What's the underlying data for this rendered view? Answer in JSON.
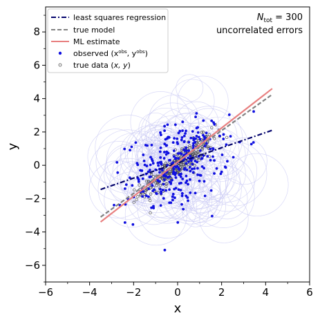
{
  "chart_data": {
    "type": "scatter",
    "title": "",
    "xlabel": "x",
    "ylabel": "y",
    "xlim": [
      -6,
      6
    ],
    "ylim": [
      -7,
      9.5
    ],
    "xticks": [
      -6,
      -4,
      -2,
      0,
      2,
      4,
      6
    ],
    "yticks": [
      -6,
      -4,
      -2,
      0,
      2,
      4,
      6,
      8
    ],
    "tick_labels_x": [
      "−6",
      "−4",
      "−2",
      "0",
      "2",
      "4",
      "6"
    ],
    "tick_labels_y": [
      "−6",
      "−4",
      "−2",
      "0",
      "2",
      "4",
      "6",
      "8"
    ],
    "grid": false,
    "legend_position": "top-left",
    "annotation": {
      "line1_main": "N",
      "line1_sub": "tot",
      "line1_rest": " = 300",
      "line2": "uncorrelated errors"
    },
    "legend": [
      {
        "label": "least squares regression",
        "kind": "dashdot",
        "color": "#00006b"
      },
      {
        "label": "true model",
        "kind": "dashed",
        "color": "#808080"
      },
      {
        "label": "ML estimate",
        "kind": "solid",
        "color": "#e88080"
      },
      {
        "label_main": "observed (x",
        "label_sup1": "obs",
        "label_mid": ", y",
        "label_sup2": "obs",
        "label_end": ")",
        "kind": "filled-dot",
        "color": "#1010e0"
      },
      {
        "label_main": "true data (",
        "label_ital": "x, y",
        "label_end": ")",
        "kind": "open-dot",
        "color": "#505050"
      }
    ],
    "series": [
      {
        "name": "least squares regression",
        "type": "line",
        "color": "#00006b",
        "style": "dashdot",
        "x": [
          -3.5,
          4.3
        ],
        "y": [
          -1.45,
          2.1
        ]
      },
      {
        "name": "true model",
        "type": "line",
        "color": "#808080",
        "style": "dashed",
        "x": [
          -3.5,
          4.3
        ],
        "y": [
          -3.1,
          4.25
        ]
      },
      {
        "name": "ML estimate",
        "type": "line",
        "color": "#e88080",
        "style": "solid",
        "x": [
          -3.5,
          4.3
        ],
        "y": [
          -3.4,
          4.6
        ]
      },
      {
        "name": "observed",
        "type": "scatter",
        "color": "#1010e0",
        "count": 300,
        "x_mean": 0,
        "x_sd": 1.15,
        "y_sd_noise": 1.25,
        "slope": 0.95
      },
      {
        "name": "true data",
        "type": "scatter",
        "color": "#505050",
        "count": 300,
        "x_mean": 0,
        "x_sd": 0.8,
        "y_sd_noise": 0.4,
        "slope": 0.95
      }
    ],
    "error_circles": {
      "color": "#c8c8f4",
      "count": 120
    }
  }
}
